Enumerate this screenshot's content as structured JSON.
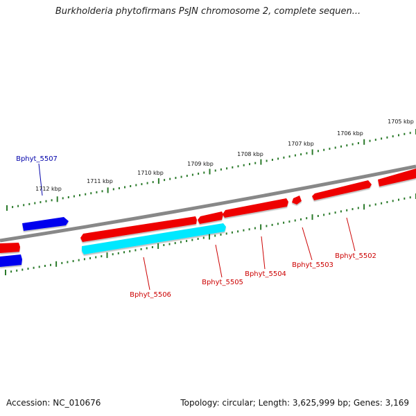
{
  "title": "Burkholderia phytofirmans PsJN chromosome 2, complete sequen...",
  "footer": {
    "accession": "Accession: NC_010676",
    "summary": "Topology: circular; Length: 3,625,999 bp; Genes: 3,169"
  },
  "colors": {
    "forward_gene": "#ee0000",
    "forward_gene_label": "#cc0000",
    "reverse_gene": "#0000ee",
    "reverse_gene_label": "#0000aa",
    "highlight_gene": "#00e8ff",
    "backbone": "#888888",
    "ticks": "#2a7a2a"
  },
  "scale": {
    "tick_labels": [
      "1705 kbp",
      "1706 kbp",
      "1707 kbp",
      "1708 kbp",
      "1709 kbp",
      "1710 kbp",
      "1711 kbp",
      "1712 kbp"
    ]
  },
  "genes": {
    "labeled": [
      {
        "id": "g5502",
        "label": "Bphyt_5502",
        "strand": "forward"
      },
      {
        "id": "g5503",
        "label": "Bphyt_5503",
        "strand": "forward"
      },
      {
        "id": "g5504",
        "label": "Bphyt_5504",
        "strand": "forward"
      },
      {
        "id": "g5505",
        "label": "Bphyt_5505",
        "strand": "forward"
      },
      {
        "id": "g5506",
        "label": "Bphyt_5506",
        "strand": "forward"
      },
      {
        "id": "g5507",
        "label": "Bphyt_5507",
        "strand": "reverse"
      }
    ],
    "highlighted": {
      "label": "Bphyt_5505"
    }
  }
}
